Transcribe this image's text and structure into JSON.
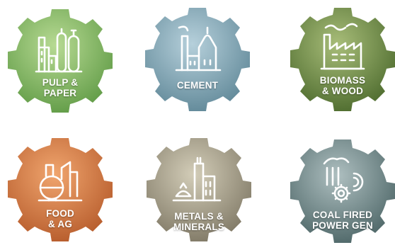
{
  "badges": [
    {
      "id": "pulp-paper",
      "lines": [
        "PULP &",
        "PAPER"
      ],
      "color_light": "#a9cf84",
      "color_dark": "#5f9a45"
    },
    {
      "id": "cement",
      "lines": [
        "CEMENT"
      ],
      "color_light": "#a7c3d0",
      "color_dark": "#5f8797"
    },
    {
      "id": "biomass-wood",
      "lines": [
        "BIOMASS",
        "& WOOD"
      ],
      "color_light": "#9ab06d",
      "color_dark": "#4c6a2d"
    },
    {
      "id": "food-ag",
      "lines": [
        "FOOD",
        "& AG"
      ],
      "color_light": "#e6955f",
      "color_dark": "#b55a2a"
    },
    {
      "id": "metals-minerals",
      "lines": [
        "METALS &",
        "MINERALS"
      ],
      "color_light": "#c6c0ab",
      "color_dark": "#7e7764"
    },
    {
      "id": "coal-fired",
      "lines": [
        "COAL FIRED",
        "POWER GEN"
      ],
      "color_light": "#9cb0b2",
      "color_dark": "#4c6566"
    }
  ],
  "icons": [
    "tanks-factory-icon",
    "cement-plant-icon",
    "factory-smoke-icon",
    "food-processing-icon",
    "mining-building-icon",
    "power-plant-gear-icon"
  ]
}
